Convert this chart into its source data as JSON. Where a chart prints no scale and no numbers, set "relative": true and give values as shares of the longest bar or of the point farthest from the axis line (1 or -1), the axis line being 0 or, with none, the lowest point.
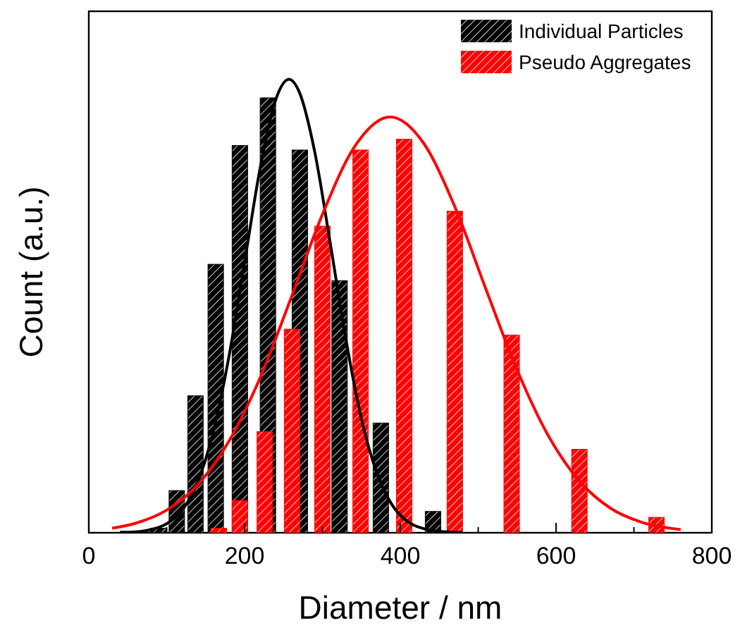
{
  "chart_data": {
    "type": "bar",
    "xlabel": "Diameter / nm",
    "ylabel": "Count (a.u.)",
    "relative": true,
    "xlim": [
      0,
      800
    ],
    "xticks": [
      0,
      {
        "value": 100,
        "label": null
      },
      200,
      {
        "value": 300,
        "label": null
      },
      400,
      {
        "value": 500,
        "label": null
      },
      600,
      {
        "value": 700,
        "label": null
      },
      800
    ],
    "legend": "top right",
    "series": [
      {
        "name": "Individual Particles",
        "color": "#000000",
        "x": [
          89,
          113,
          137,
          163,
          194,
          230,
          271,
          322,
          375,
          442
        ],
        "values": [
          0.01,
          0.093,
          0.302,
          0.592,
          0.854,
          0.959,
          0.844,
          0.556,
          0.242,
          0.047
        ]
      },
      {
        "name": "Pseudo Aggregates",
        "color": "#ff0000",
        "x": [
          167,
          194,
          226,
          261,
          300,
          349,
          405,
          470,
          543,
          630,
          729
        ],
        "values": [
          0.01,
          0.071,
          0.223,
          0.449,
          0.676,
          0.844,
          0.868,
          0.709,
          0.436,
          0.184,
          0.034
        ]
      },
      {
        "type": "line",
        "color": "#000000",
        "x": [
          40,
          60,
          80,
          100,
          120,
          140,
          160,
          180,
          200,
          220,
          240,
          257,
          270,
          290,
          310,
          330,
          350,
          370,
          390,
          410,
          430,
          450,
          480
        ],
        "values": [
          0.001,
          0.002,
          0.007,
          0.02,
          0.05,
          0.113,
          0.223,
          0.389,
          0.596,
          0.804,
          0.955,
          1,
          0.973,
          0.841,
          0.639,
          0.428,
          0.252,
          0.131,
          0.06,
          0.024,
          0.009,
          0.003,
          0
        ]
      },
      {
        "type": "line",
        "color": "#ff0000",
        "x": [
          30,
          60,
          100,
          140,
          180,
          220,
          260,
          300,
          340,
          387,
          430,
          470,
          510,
          550,
          590,
          630,
          670,
          710,
          760
        ],
        "values": [
          0.01,
          0.021,
          0.05,
          0.106,
          0.202,
          0.342,
          0.519,
          0.702,
          0.848,
          0.917,
          0.859,
          0.719,
          0.537,
          0.359,
          0.214,
          0.114,
          0.054,
          0.023,
          0.007
        ]
      }
    ]
  }
}
